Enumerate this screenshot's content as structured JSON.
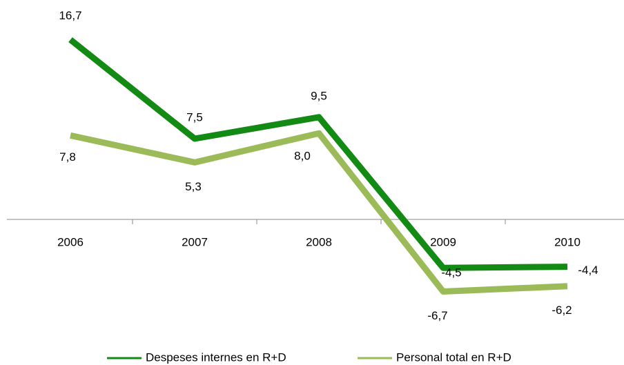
{
  "chart_data": {
    "type": "line",
    "categories": [
      "2006",
      "2007",
      "2008",
      "2009",
      "2010"
    ],
    "series": [
      {
        "name": "Despeses internes en R+D",
        "color": "#138a13",
        "values": [
          16.7,
          7.5,
          9.5,
          -4.5,
          -4.4
        ],
        "value_labels": [
          "16,7",
          "7,5",
          "9,5",
          "-4,5",
          "-4,4"
        ]
      },
      {
        "name": "Personal total en R+D",
        "color": "#9bbb59",
        "values": [
          7.8,
          5.3,
          8.0,
          -6.7,
          -6.2
        ],
        "value_labels": [
          "7,8",
          "5,3",
          "8,0",
          "-6,7",
          "-6,2"
        ]
      }
    ],
    "legend": "bottom"
  }
}
